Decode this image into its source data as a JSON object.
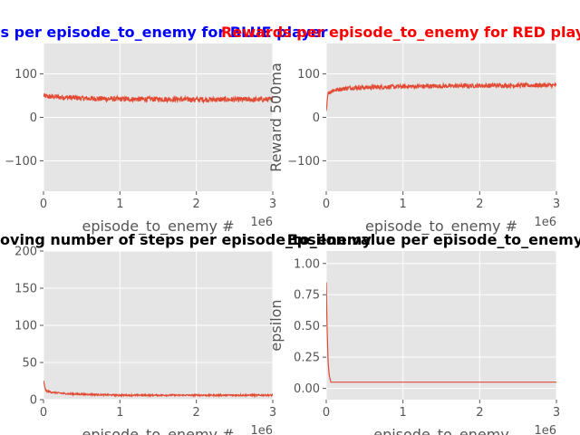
{
  "chart_data": [
    {
      "type": "line",
      "title": "Rewards per episode_to_enemy for BLUE player",
      "title_color": "#0000ff",
      "xlabel": "episode_to_enemy #",
      "ylabel": "",
      "xlim": [
        0,
        3000000
      ],
      "ylim": [
        -170,
        170
      ],
      "x_ticks": [
        0,
        1000000,
        2000000,
        3000000
      ],
      "x_tick_labels": [
        "0",
        "1",
        "2",
        "3"
      ],
      "x_offset_label": "1e6",
      "y_ticks": [
        -100,
        0,
        100
      ],
      "y_tick_labels": [
        "−100",
        "0",
        "100"
      ],
      "grid": true,
      "series": [
        {
          "color": "#e24a33",
          "noise_band": 12,
          "points": [
            [
              0,
              50
            ],
            [
              50000,
              48
            ],
            [
              500000,
              44
            ],
            [
              1000000,
              42
            ],
            [
              1500000,
              42
            ],
            [
              2000000,
              41
            ],
            [
              2500000,
              41
            ],
            [
              3000000,
              41
            ]
          ]
        }
      ]
    },
    {
      "type": "line",
      "title": "Rewards per episode_to_enemy for RED player",
      "title_color": "#ff0000",
      "xlabel": "episode_to_enemy #",
      "ylabel": "Reward 500ma",
      "xlim": [
        0,
        3000000
      ],
      "ylim": [
        -170,
        170
      ],
      "x_ticks": [
        0,
        1000000,
        2000000,
        3000000
      ],
      "x_tick_labels": [
        "0",
        "1",
        "2",
        "3"
      ],
      "x_offset_label": "1e6",
      "y_ticks": [
        -100,
        0,
        100
      ],
      "y_tick_labels": [
        "−100",
        "0",
        "100"
      ],
      "grid": true,
      "series": [
        {
          "color": "#e24a33",
          "noise_band": 10,
          "points": [
            [
              0,
              15
            ],
            [
              20000,
              55
            ],
            [
              80000,
              62
            ],
            [
              300000,
              68
            ],
            [
              1000000,
              71
            ],
            [
              2000000,
              73
            ],
            [
              3000000,
              74
            ]
          ]
        }
      ]
    },
    {
      "type": "line",
      "title": "Moving number of steps per episode_to_enemy",
      "title_color": "#000000",
      "xlabel": "episode_to_enemy #",
      "ylabel": "",
      "xlim": [
        0,
        3000000
      ],
      "ylim": [
        0,
        200
      ],
      "x_ticks": [
        0,
        1000000,
        2000000,
        3000000
      ],
      "x_tick_labels": [
        "0",
        "1",
        "2",
        "3"
      ],
      "x_offset_label": "1e6",
      "y_ticks": [
        0,
        50,
        100,
        150,
        200
      ],
      "y_tick_labels": [
        "0",
        "50",
        "100",
        "150",
        "200"
      ],
      "grid": true,
      "series": [
        {
          "color": "#e24a33",
          "noise_band": 2,
          "points": [
            [
              0,
              25
            ],
            [
              30000,
              12
            ],
            [
              100000,
              10
            ],
            [
              300000,
              8
            ],
            [
              600000,
              7
            ],
            [
              1000000,
              6
            ],
            [
              2000000,
              6
            ],
            [
              3000000,
              6
            ]
          ]
        }
      ]
    },
    {
      "type": "line",
      "title": "Epsilon value per episode_to_enemy",
      "title_color": "#000000",
      "xlabel": "episode_to_enemy",
      "ylabel": "epsilon",
      "xlim": [
        0,
        3000000
      ],
      "ylim": [
        -0.09,
        1.1
      ],
      "x_ticks": [
        0,
        1000000,
        2000000,
        3000000
      ],
      "x_tick_labels": [
        "0",
        "1",
        "2",
        "3"
      ],
      "x_offset_label": "1e6",
      "y_ticks": [
        0.0,
        0.25,
        0.5,
        0.75,
        1.0
      ],
      "y_tick_labels": [
        "0.00",
        "0.25",
        "0.50",
        "0.75",
        "1.00"
      ],
      "grid": true,
      "series": [
        {
          "color": "#e24a33",
          "noise_band": 0,
          "points": [
            [
              0,
              0.85
            ],
            [
              10000,
              0.5
            ],
            [
              25000,
              0.2
            ],
            [
              40000,
              0.1
            ],
            [
              60000,
              0.05
            ],
            [
              3000000,
              0.05
            ]
          ]
        }
      ]
    }
  ]
}
